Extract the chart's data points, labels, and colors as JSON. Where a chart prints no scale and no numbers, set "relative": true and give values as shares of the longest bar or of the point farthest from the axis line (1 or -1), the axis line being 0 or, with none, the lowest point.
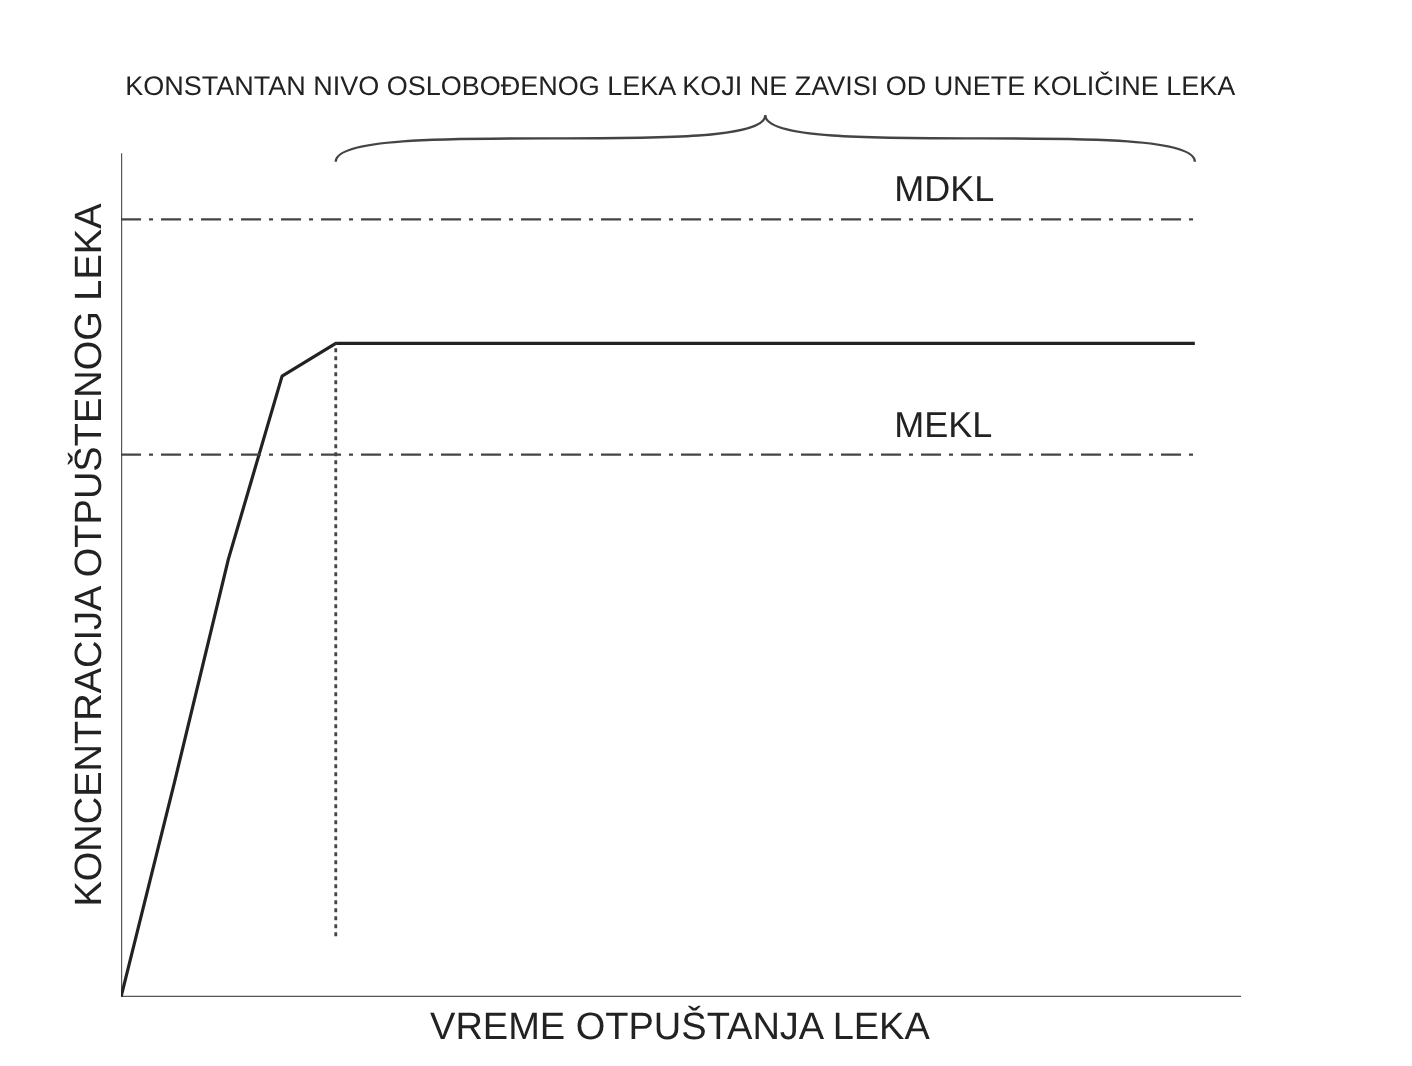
{
  "chart_data": {
    "type": "line",
    "title": "KONSTANTAN NIVO OSLOBOĐENOG LEKA KOJI NE ZAVISI OD UNETE KOLIČINE LEKA",
    "xlabel": "VREME OTPUŠTANJA LEKA",
    "ylabel": "KONCENTRACIJA OTPUŠTENOG LEKA",
    "relative": true,
    "categories": [
      null,
      null,
      null,
      null,
      null,
      null,
      null,
      null,
      null,
      null,
      null,
      null,
      null,
      null,
      null,
      null,
      null,
      null,
      null,
      null,
      null
    ],
    "series": [
      {
        "color": "#222222",
        "values": [
          0,
          0.33,
          0.67,
          0.95,
          1,
          1,
          1,
          1,
          1,
          1,
          1,
          1,
          1,
          1,
          1,
          1,
          1,
          1,
          1,
          1,
          1
        ]
      }
    ],
    "ref_lines": [
      {
        "axis": "y",
        "value": 1.19,
        "label": "MDKL",
        "color": "#444444",
        "line_style": "dashed"
      },
      {
        "axis": "y",
        "value": 0.83,
        "label": "MEKL",
        "color": "#444444",
        "line_style": "dashed"
      }
    ],
    "marker": "none",
    "line_style": "solid"
  }
}
